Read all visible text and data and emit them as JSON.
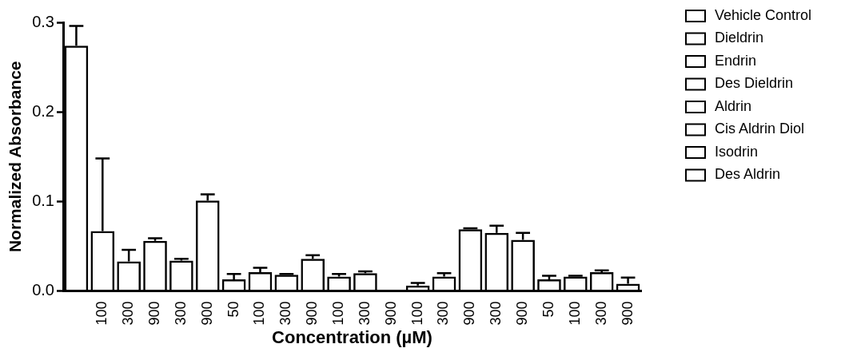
{
  "chart_data": {
    "type": "bar",
    "xlabel": "Concentration (µM)",
    "ylabel": "Normalized Absorbance",
    "categories": [
      null,
      "100",
      "300",
      "900",
      "300",
      "900",
      "50",
      "100",
      "300",
      "900",
      "100",
      "300",
      "900",
      "100",
      "300",
      "900",
      "300",
      "900",
      "50",
      "100",
      "300",
      "900"
    ],
    "ylim": [
      0,
      0.3
    ],
    "yticks": [
      {
        "value": 0,
        "label": "0.0"
      },
      {
        "value": 0.1,
        "label": "0.1"
      },
      {
        "value": 0.2,
        "label": "0.2"
      },
      {
        "value": 0.3,
        "label": "0.3"
      }
    ],
    "grid": false,
    "legend": "right",
    "series": [
      {
        "name": "Vehicle Control",
        "color": "#000000",
        "values": [
          0.274,
          null,
          null,
          null,
          null,
          null,
          null,
          null,
          null,
          null,
          null,
          null,
          null,
          null,
          null,
          null,
          null,
          null,
          null,
          null,
          null,
          null
        ],
        "errors": [
          [
            0.274,
            0.296
          ],
          null,
          null,
          null,
          null,
          null,
          null,
          null,
          null,
          null,
          null,
          null,
          null,
          null,
          null,
          null,
          null,
          null,
          null,
          null,
          null,
          null
        ]
      },
      {
        "name": "Dieldrin",
        "color": "#000000",
        "values": [
          null,
          0.067,
          0.033,
          0.056,
          null,
          null,
          null,
          null,
          null,
          null,
          null,
          null,
          null,
          null,
          null,
          null,
          null,
          null,
          null,
          null,
          null,
          null
        ],
        "errors": [
          null,
          [
            0.067,
            0.148
          ],
          [
            0.033,
            0.046
          ],
          [
            0.056,
            0.059
          ],
          null,
          null,
          null,
          null,
          null,
          null,
          null,
          null,
          null,
          null,
          null,
          null,
          null,
          null,
          null,
          null,
          null,
          null
        ]
      },
      {
        "name": "Endrin",
        "color": "#000000",
        "values": [
          null,
          null,
          null,
          null,
          0.034,
          0.101,
          null,
          null,
          null,
          null,
          null,
          null,
          null,
          null,
          null,
          null,
          null,
          null,
          null,
          null,
          null,
          null
        ],
        "errors": [
          null,
          null,
          null,
          null,
          [
            0.034,
            0.036
          ],
          [
            0.101,
            0.108
          ],
          null,
          null,
          null,
          null,
          null,
          null,
          null,
          null,
          null,
          null,
          null,
          null,
          null,
          null,
          null,
          null
        ]
      },
      {
        "name": "Des Dieldrin",
        "color": "#000000",
        "values": [
          null,
          null,
          null,
          null,
          null,
          null,
          0.013,
          0.021,
          0.018,
          0.036,
          null,
          null,
          null,
          null,
          null,
          null,
          null,
          null,
          null,
          null,
          null,
          null
        ],
        "errors": [
          null,
          null,
          null,
          null,
          null,
          null,
          [
            0.013,
            0.019
          ],
          [
            0.021,
            0.026
          ],
          [
            0.018,
            0.019
          ],
          [
            0.036,
            0.04
          ],
          null,
          null,
          null,
          null,
          null,
          null,
          null,
          null,
          null,
          null,
          null,
          null
        ]
      },
      {
        "name": "Aldrin",
        "color": "#000000",
        "values": [
          null,
          null,
          null,
          null,
          null,
          null,
          null,
          null,
          null,
          null,
          0.016,
          0.02,
          0,
          null,
          null,
          null,
          null,
          null,
          null,
          null,
          null,
          null
        ],
        "errors": [
          null,
          null,
          null,
          null,
          null,
          null,
          null,
          null,
          null,
          null,
          [
            0.016,
            0.019
          ],
          [
            0.02,
            0.022
          ],
          null,
          null,
          null,
          null,
          null,
          null,
          null,
          null,
          null,
          null
        ]
      },
      {
        "name": "Cis Aldrin Diol",
        "color": "#000000",
        "values": [
          null,
          null,
          null,
          null,
          null,
          null,
          null,
          null,
          null,
          null,
          null,
          null,
          null,
          0.006,
          0.016,
          0.069,
          null,
          null,
          null,
          null,
          null,
          null
        ],
        "errors": [
          null,
          null,
          null,
          null,
          null,
          null,
          null,
          null,
          null,
          null,
          null,
          null,
          null,
          [
            0.006,
            0.009
          ],
          [
            0.016,
            0.02
          ],
          [
            0.069,
            0.07
          ],
          null,
          null,
          null,
          null,
          null,
          null
        ]
      },
      {
        "name": "Isodrin",
        "color": "#000000",
        "values": [
          null,
          null,
          null,
          null,
          null,
          null,
          null,
          null,
          null,
          null,
          null,
          null,
          null,
          null,
          null,
          null,
          0.065,
          0.057,
          null,
          null,
          null,
          null
        ],
        "errors": [
          null,
          null,
          null,
          null,
          null,
          null,
          null,
          null,
          null,
          null,
          null,
          null,
          null,
          null,
          null,
          null,
          [
            0.065,
            0.073
          ],
          [
            0.057,
            0.065
          ],
          null,
          null,
          null,
          null
        ]
      },
      {
        "name": "Des Aldrin",
        "color": "#000000",
        "values": [
          null,
          null,
          null,
          null,
          null,
          null,
          null,
          null,
          null,
          null,
          null,
          null,
          null,
          null,
          null,
          null,
          null,
          null,
          0.013,
          0.016,
          0.021,
          0.008
        ],
        "errors": [
          null,
          null,
          null,
          null,
          null,
          null,
          null,
          null,
          null,
          null,
          null,
          null,
          null,
          null,
          null,
          null,
          null,
          null,
          [
            0.013,
            0.017
          ],
          [
            0.016,
            0.017
          ],
          [
            0.021,
            0.023
          ],
          [
            0.008,
            0.015
          ]
        ]
      }
    ]
  }
}
